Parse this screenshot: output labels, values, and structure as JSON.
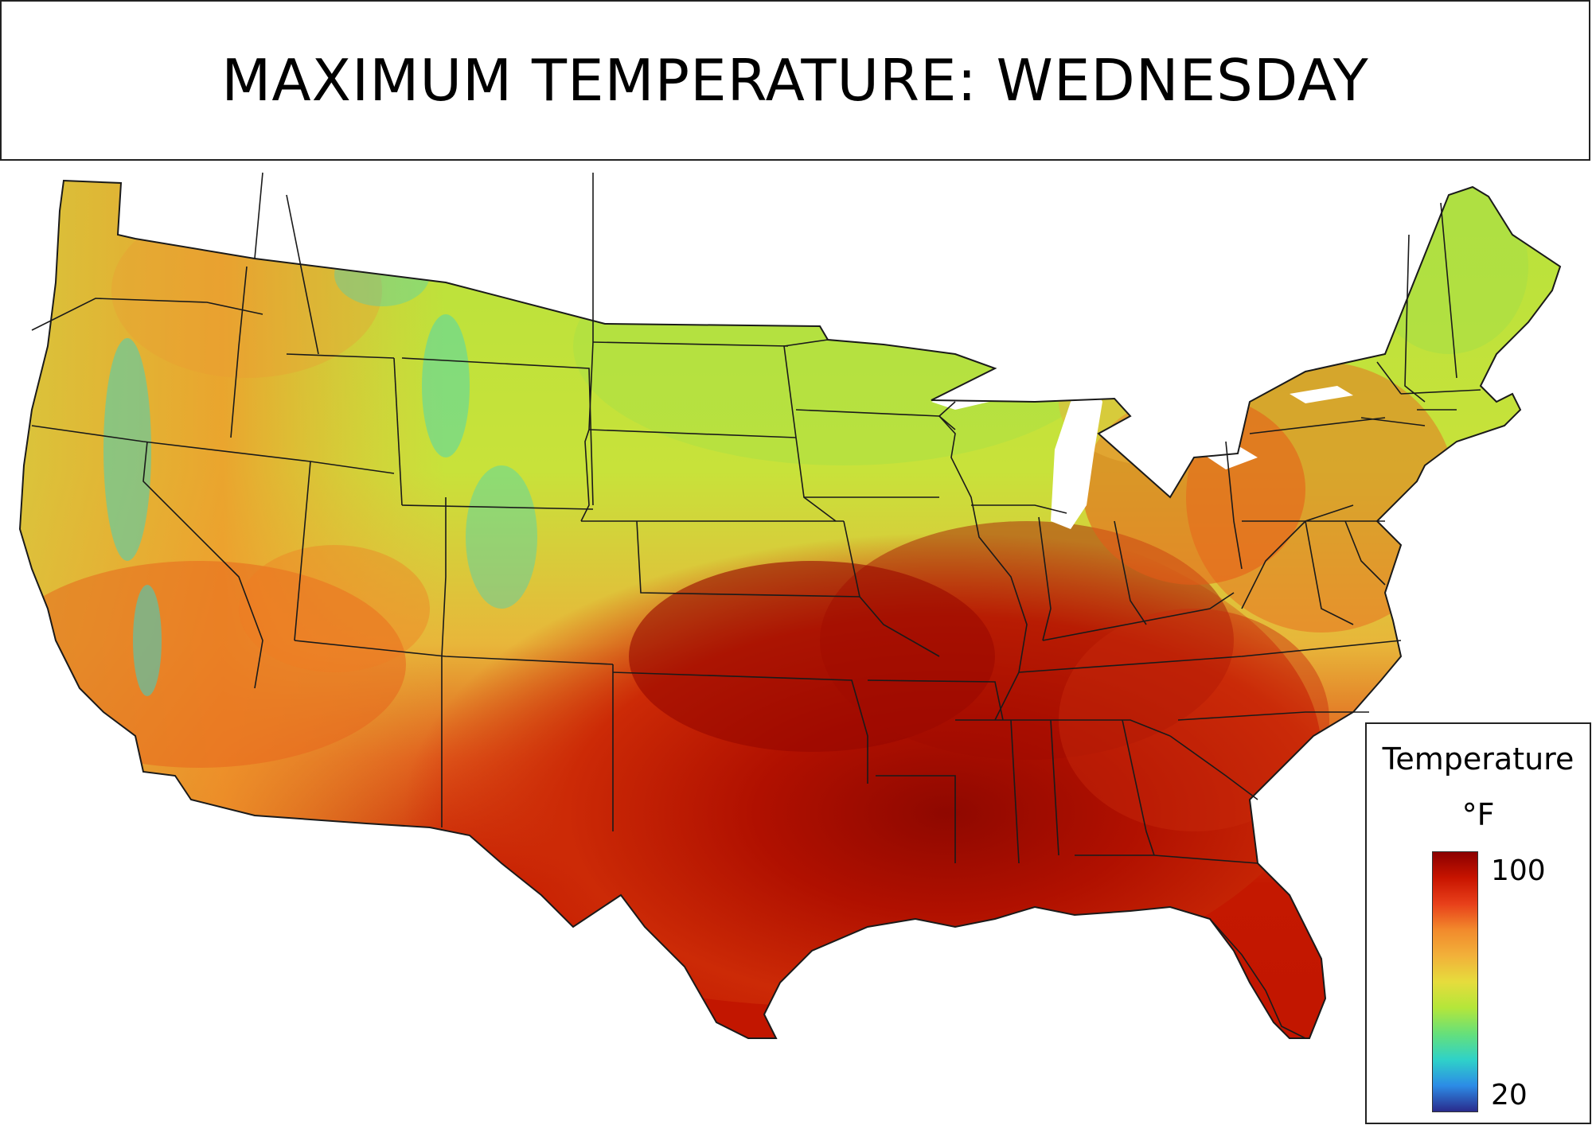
{
  "title": "MAXIMUM TEMPERATURE: WEDNESDAY",
  "legend": {
    "title": "Temperature",
    "unit": "°F",
    "max_label": "100",
    "min_label": "20",
    "colors": [
      "#8b0000",
      "#c81400",
      "#e8401a",
      "#f28a2c",
      "#f2b13a",
      "#e6dc3c",
      "#b4e63a",
      "#66e07a",
      "#2fd2c8",
      "#2c8ce6",
      "#2a2a8c"
    ]
  },
  "map": {
    "region": "contiguous-united-states",
    "colors": {
      "hottest": "#9a0a00",
      "very_hot": "#c81800",
      "hot": "#e24a14",
      "warm": "#f0952c",
      "mild": "#e8d23c",
      "cool": "#b8e43c",
      "cooler": "#8ee060",
      "coldest": "#38d4c8",
      "water": "#ffffff",
      "borders": "#1a1a1a"
    }
  }
}
